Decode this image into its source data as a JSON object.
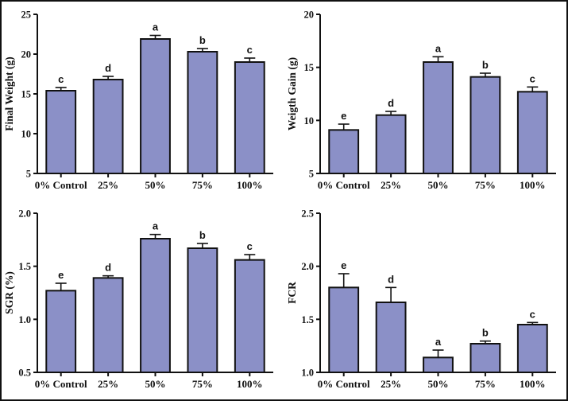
{
  "figure": {
    "background": "#ffffff",
    "border_color": "#111111",
    "bar_fill": "#8b90c7",
    "bar_stroke": "#111111",
    "axis_color": "#111111",
    "text_color": "#111111"
  },
  "chart_data": [
    {
      "type": "bar",
      "name": "final-weight",
      "title": "",
      "xlabel": "",
      "ylabel": "Final Weight (g)",
      "ylim": [
        5,
        25
      ],
      "yticks": [
        5,
        10,
        15,
        20,
        25
      ],
      "ytick_labels": [
        "5",
        "10",
        "15",
        "20",
        "25"
      ],
      "categories": [
        "0% Control",
        "25%",
        "50%",
        "75%",
        "100%"
      ],
      "values": [
        15.4,
        16.8,
        21.9,
        20.3,
        19.0
      ],
      "errors": [
        0.4,
        0.4,
        0.45,
        0.4,
        0.5
      ],
      "sig_letters": [
        "c",
        "d",
        "a",
        "b",
        "c"
      ],
      "grid": false,
      "legend": "none"
    },
    {
      "type": "bar",
      "name": "weight-gain",
      "title": "",
      "xlabel": "",
      "ylabel": "Weigth Gain (g)",
      "ylim": [
        5,
        20
      ],
      "yticks": [
        5,
        10,
        15,
        20
      ],
      "ytick_labels": [
        "5",
        "10",
        "15",
        "20"
      ],
      "categories": [
        "0% Control",
        "25%",
        "50%",
        "75%",
        "100%"
      ],
      "values": [
        9.1,
        10.5,
        15.5,
        14.1,
        12.7
      ],
      "errors": [
        0.55,
        0.35,
        0.5,
        0.35,
        0.45
      ],
      "sig_letters": [
        "e",
        "d",
        "a",
        "b",
        "c"
      ],
      "grid": false,
      "legend": "none"
    },
    {
      "type": "bar",
      "name": "sgr",
      "title": "",
      "xlabel": "",
      "ylabel": "SGR (%)",
      "ylim": [
        0.5,
        2.0
      ],
      "yticks": [
        0.5,
        1.0,
        1.5,
        2.0
      ],
      "ytick_labels": [
        "0.5",
        "1.0",
        "1.5",
        "2.0"
      ],
      "categories": [
        "0% Control",
        "25%",
        "50%",
        "75%",
        "100%"
      ],
      "values": [
        1.27,
        1.39,
        1.76,
        1.67,
        1.56
      ],
      "errors": [
        0.07,
        0.02,
        0.04,
        0.045,
        0.05
      ],
      "sig_letters": [
        "e",
        "d",
        "a",
        "b",
        "c"
      ],
      "grid": false,
      "legend": "none"
    },
    {
      "type": "bar",
      "name": "fcr",
      "title": "",
      "xlabel": "",
      "ylabel": "FCR",
      "ylim": [
        1.0,
        2.5
      ],
      "yticks": [
        1.0,
        1.5,
        2.0,
        2.5
      ],
      "ytick_labels": [
        "1.0",
        "1.5",
        "2.0",
        "2.5"
      ],
      "categories": [
        "0% Control",
        "25%",
        "50%",
        "75%",
        "100%"
      ],
      "values": [
        1.8,
        1.66,
        1.14,
        1.27,
        1.45
      ],
      "errors": [
        0.13,
        0.14,
        0.07,
        0.025,
        0.02
      ],
      "sig_letters": [
        "e",
        "d",
        "a",
        "b",
        "c"
      ],
      "grid": false,
      "legend": "none"
    }
  ]
}
